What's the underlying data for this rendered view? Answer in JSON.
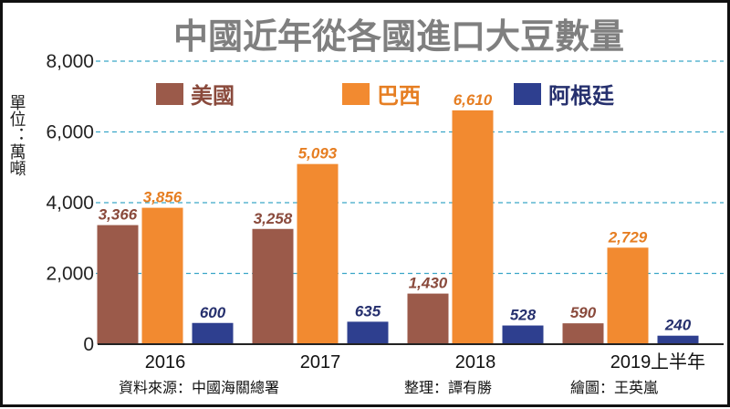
{
  "chart_data": {
    "type": "bar",
    "title": "中國近年從各國進口大豆數量",
    "ylabel": "單位：萬噸",
    "ylim": [
      0,
      8000
    ],
    "yticks": [
      "0",
      "2,000",
      "4,000",
      "6,000",
      "8,000"
    ],
    "ytick_values": [
      0,
      2000,
      4000,
      6000,
      8000
    ],
    "categories": [
      "2016",
      "2017",
      "2018",
      "2019"
    ],
    "category_suffix": "上半年",
    "series": [
      {
        "name": "美國",
        "values": [
          3366,
          3258,
          1430,
          590
        ],
        "labels": [
          "3,366",
          "3,258",
          "1,430",
          "590"
        ],
        "color": "#9b5a4a",
        "label_color": "#8a4a3c"
      },
      {
        "name": "巴西",
        "values": [
          3856,
          5093,
          6610,
          2729
        ],
        "labels": [
          "3,856",
          "5,093",
          "6,610",
          "2,729"
        ],
        "color": "#f28a30",
        "label_color": "#e67e22"
      },
      {
        "name": "阿根廷",
        "values": [
          600,
          635,
          528,
          240
        ],
        "labels": [
          "600",
          "635",
          "528",
          "240"
        ],
        "color": "#2e3f8f",
        "label_color": "#26306e"
      }
    ],
    "grid": true,
    "legend_position": "top"
  },
  "footer": {
    "source": "資料來源：中國海關總署",
    "compiler": "整理：譚有勝",
    "artist": "繪圖：王英嵐"
  }
}
